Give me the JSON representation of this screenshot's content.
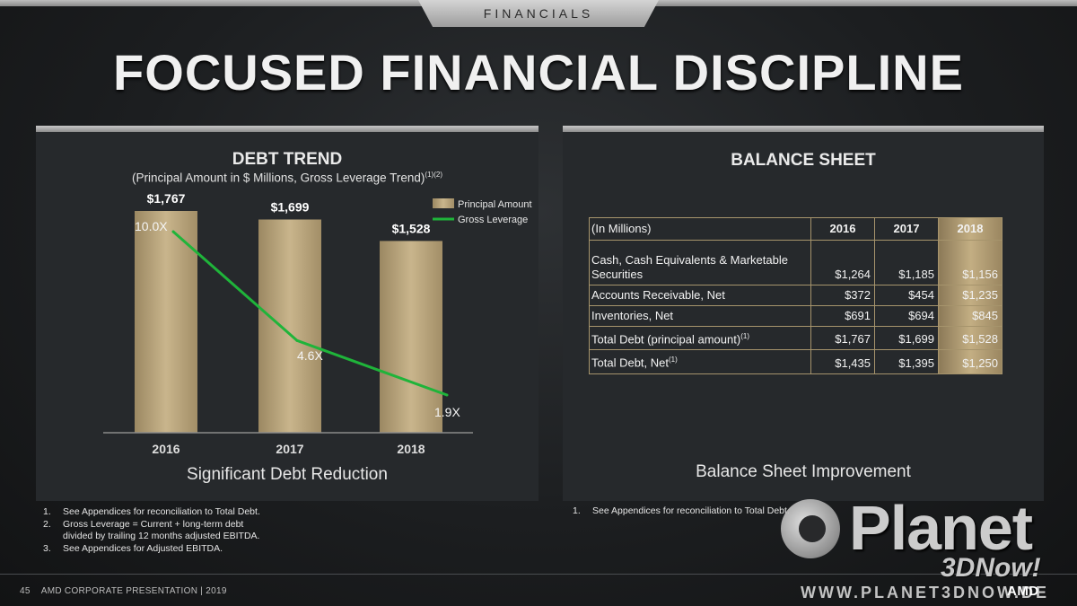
{
  "header": {
    "section_tab": "FINANCIALS",
    "title": "FOCUSED FINANCIAL DISCIPLINE"
  },
  "debt_panel": {
    "heading": "DEBT TREND",
    "subheading": "(Principal Amount in $ Millions, Gross Leverage Trend)",
    "subheading_sup": "(1)(2)",
    "caption": "Significant Debt Reduction"
  },
  "chart_data": {
    "type": "bar",
    "title": "DEBT TREND",
    "categories": [
      "2016",
      "2017",
      "2018"
    ],
    "series": [
      {
        "name": "Principal Amount",
        "values": [
          1767,
          1699,
          1528
        ],
        "labels": [
          "$1,767",
          "$1,699",
          "$1,528"
        ],
        "color": "#b9a47c"
      },
      {
        "name": "Gross Leverage",
        "type": "line",
        "values": [
          10.0,
          4.6,
          1.9
        ],
        "labels": [
          "10.0X",
          "4.6X",
          "1.9X"
        ],
        "color": "#1fb43a"
      }
    ],
    "legend_position": "top-right",
    "grid": false
  },
  "balance_panel": {
    "heading": "BALANCE SHEET",
    "caption": "Balance Sheet Improvement",
    "table": {
      "headers": [
        "(In Millions)",
        "2016",
        "2017",
        "2018"
      ],
      "rows": [
        {
          "label": "Cash, Cash Equivalents & Marketable Securities",
          "sup": "",
          "values": [
            "$1,264",
            "$1,185",
            "$1,156"
          ]
        },
        {
          "label": "Accounts Receivable, Net",
          "sup": "",
          "values": [
            "$372",
            "$454",
            "$1,235"
          ]
        },
        {
          "label": "Inventories, Net",
          "sup": "",
          "values": [
            "$691",
            "$694",
            "$845"
          ]
        },
        {
          "label": "Total Debt (principal amount)",
          "sup": "(1)",
          "values": [
            "$1,767",
            "$1,699",
            "$1,528"
          ]
        },
        {
          "label": "Total Debt, Net",
          "sup": "(1)",
          "values": [
            "$1,435",
            "$1,395",
            "$1,250"
          ]
        }
      ]
    }
  },
  "footnotes_left": [
    {
      "num": "1.",
      "text": "See  Appendices for  reconciliation to Total Debt."
    },
    {
      "num": "2.",
      "text": "Gross Leverage  = Current + long-term debt\ndivided by trailing 12 months adjusted EBITDA."
    },
    {
      "num": "3.",
      "text": "See Appendices for Adjusted EBITDA."
    }
  ],
  "footnotes_right": [
    {
      "num": "1.",
      "text": "See Appendices for reconciliation to Total Debt."
    }
  ],
  "footer": {
    "page_number": "45",
    "text": "AMD CORPORATE  PRESENTATION    |    2019",
    "logo": "AMD"
  },
  "watermark": {
    "brand": "Planet",
    "tagline": "3DNow!",
    "url": "WWW.PLANET3DNOW.DE"
  },
  "colors": {
    "bar": "#b9a47c",
    "line": "#1fb43a",
    "panel": "#26292c",
    "accent_border": "#a6946c"
  }
}
